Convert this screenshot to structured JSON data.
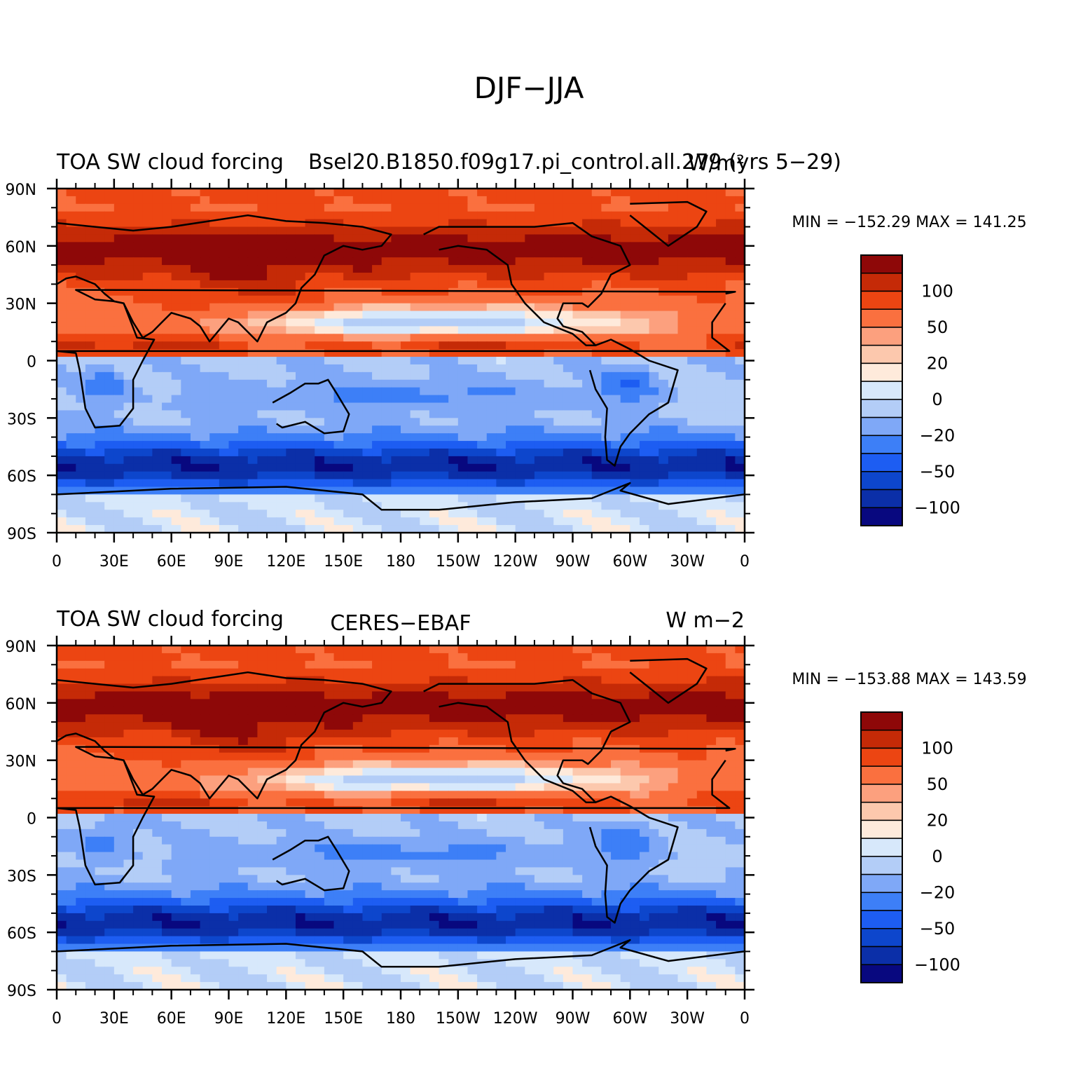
{
  "figure": {
    "title": "DJF−JJA"
  },
  "palette": [
    "#08087f",
    "#0b2fa8",
    "#0d46cc",
    "#1d5df2",
    "#3d7ff7",
    "#7fa8f7",
    "#b3cdf7",
    "#d7e8fb",
    "#feeadb",
    "#fcc8ad",
    "#fca07e",
    "#fa703f",
    "#ec4512",
    "#c52a07",
    "#8e0808"
  ],
  "panels": [
    {
      "left_title": "TOA SW cloud forcing",
      "center_title": "Bsel20.B1850.f09g17.pi_control.all.279 (yrs 5−29)",
      "units": "W/m²",
      "min_max": "MIN = −152.29 MAX = 141.25"
    },
    {
      "left_title": "TOA SW cloud forcing",
      "center_title": "CERES−EBAF",
      "units": "W m−2",
      "min_max": "MIN = −153.88 MAX = 143.59"
    }
  ],
  "chart_data": {
    "type": "heatmap",
    "title": "DJF−JJA",
    "variable": "TOA SW cloud forcing",
    "x_ticks": [
      "0",
      "30E",
      "60E",
      "90E",
      "120E",
      "150E",
      "180",
      "150W",
      "120W",
      "90W",
      "60W",
      "30W",
      "0"
    ],
    "y_ticks": [
      "90N",
      "60N",
      "30N",
      "0",
      "30S",
      "60S",
      "90S"
    ],
    "colorbar_labels": [
      "100",
      "50",
      "20",
      "0",
      "−20",
      "−50",
      "−100"
    ],
    "colorbar_levels": 15,
    "panels": [
      {
        "name": "Bsel20.B1850.f09g17.pi_control.all.279 (yrs 5−29)",
        "units": "W/m²",
        "min": -152.29,
        "max": 141.25
      },
      {
        "name": "CERES−EBAF",
        "units": "W m−2",
        "min": -153.88,
        "max": 143.59
      }
    ]
  }
}
